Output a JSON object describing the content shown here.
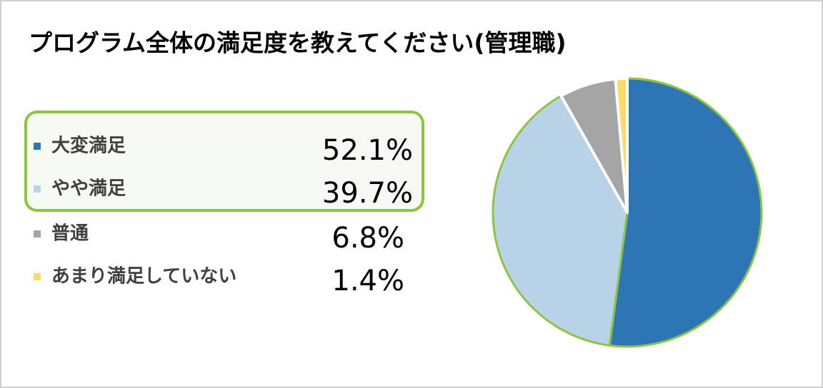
{
  "chart_data": {
    "type": "pie",
    "title": "プログラム全体の満足度を教えてください(管理職)",
    "categories": [
      "大変満足",
      "やや満足",
      "普通",
      "あまり満足していない"
    ],
    "series": [
      {
        "values": [
          52.1,
          39.7,
          6.8,
          1.4
        ],
        "value_labels": [
          "52.1%",
          "39.7%",
          "6.8%",
          "1.4%"
        ],
        "colors": [
          "#2e75b6",
          "#b8d3e8",
          "#a5a5a5",
          "#ffd966"
        ]
      }
    ]
  }
}
